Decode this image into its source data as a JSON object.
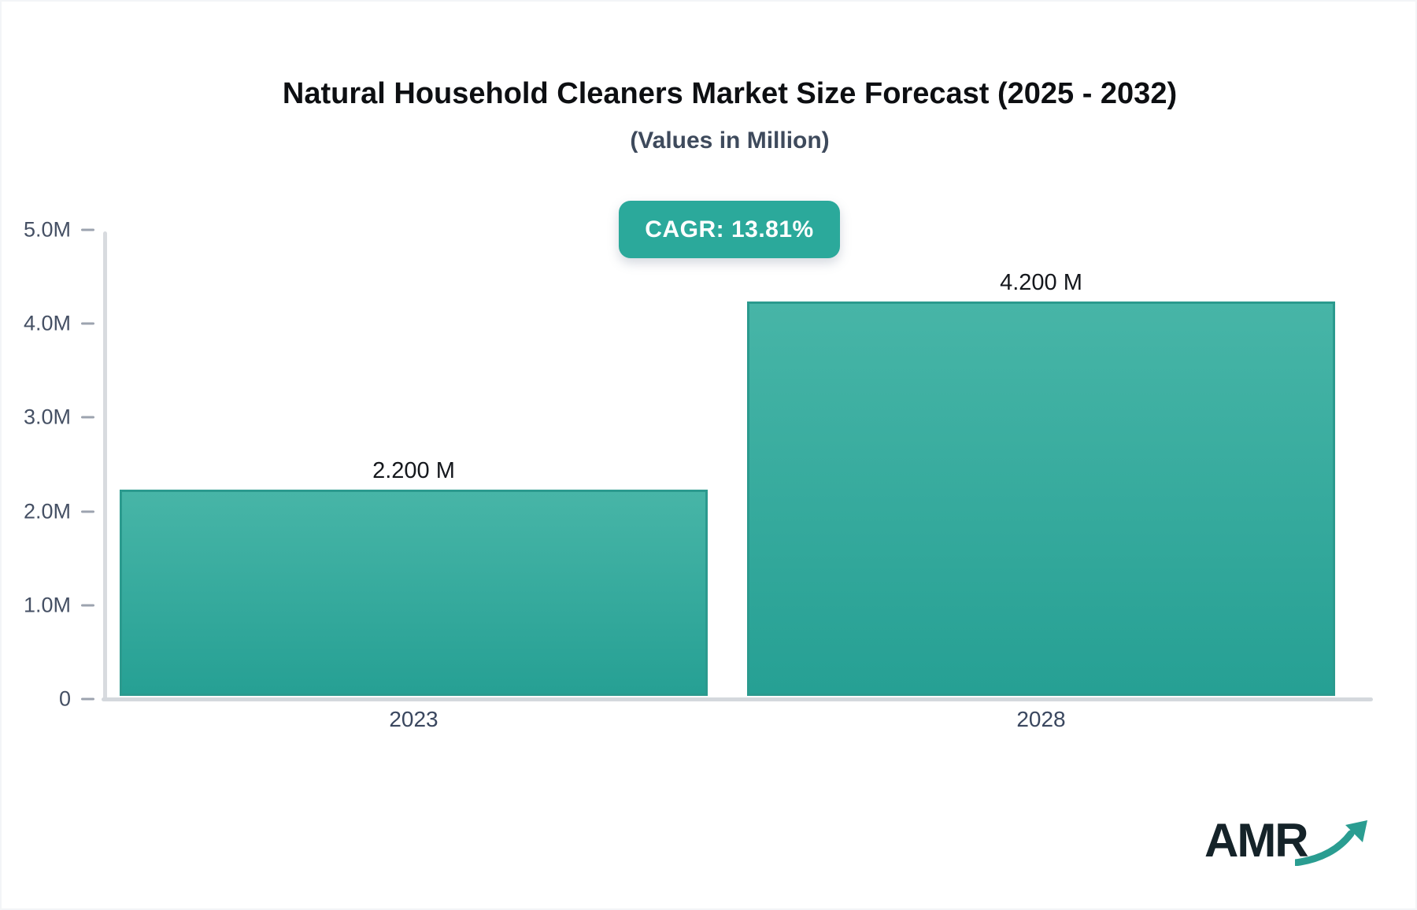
{
  "header": {
    "title": "Natural Household Cleaners Market Size Forecast (2025 - 2032)",
    "subtitle": "(Values in Million)"
  },
  "badge": {
    "label": "CAGR: 13.81%"
  },
  "chart_data": {
    "type": "bar",
    "title": "Natural Household Cleaners Market Size Forecast (2025 - 2032)",
    "subtitle": "(Values in Million)",
    "unit": "Million",
    "cagr_pct": 13.81,
    "categories": [
      "2023",
      "2028"
    ],
    "values": [
      2.2,
      4.2
    ],
    "bar_labels": [
      "2.200 M",
      "4.200 M"
    ],
    "ylim": [
      0,
      5
    ],
    "yticks": [
      {
        "value": 5,
        "label": "5.0M"
      },
      {
        "value": 4,
        "label": "4.0M"
      },
      {
        "value": 3,
        "label": "3.0M"
      },
      {
        "value": 2,
        "label": "2.0M"
      },
      {
        "value": 1,
        "label": "1.0M"
      },
      {
        "value": 0,
        "label": "0"
      }
    ],
    "grid": false,
    "legend": "none",
    "bar_color_top": "#47b5a7",
    "bar_color_bottom": "#26a094",
    "bar_border_color": "#2b9a8e"
  },
  "logo": {
    "text": "AMR",
    "arrow_icon": "trending-up-arrow",
    "accent_color": "#2a9d91"
  },
  "colors": {
    "badge_bg": "#2ba99b",
    "badge_text": "#ffffff",
    "axis_line": "#d6dade",
    "tick_dash": "#9ca3af",
    "tick_label": "#455064",
    "x_label": "#3a475f",
    "title_text": "#0d0f12",
    "subtitle_text": "#3e4a5c",
    "background": "#ffffff"
  }
}
